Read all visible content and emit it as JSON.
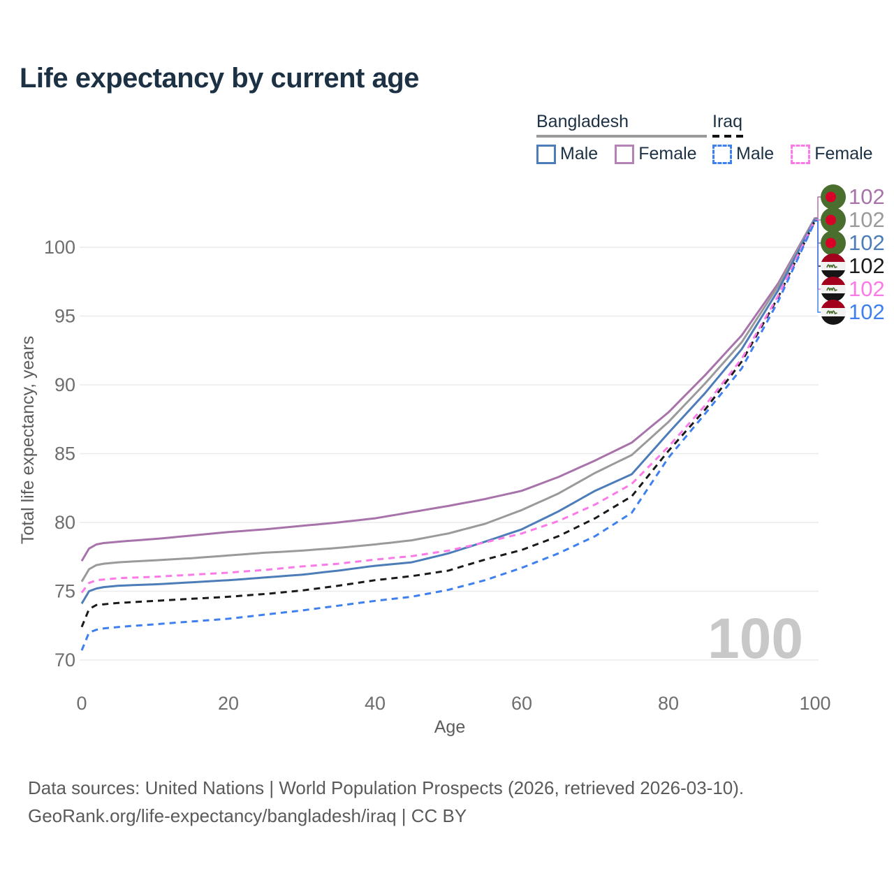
{
  "title": "Life expectancy by current age",
  "legend": {
    "groups": [
      {
        "label": "Bangladesh",
        "line_style": "solid",
        "line_color": "#9a9a9a",
        "items": [
          {
            "label": "Male",
            "color": "#4d7db8",
            "dash": "solid"
          },
          {
            "label": "Female",
            "color": "#b681b4",
            "dash": "solid"
          }
        ]
      },
      {
        "label": "Iraq",
        "line_style": "dashed",
        "line_color": "#111111",
        "items": [
          {
            "label": "Male",
            "color": "#3f80f0",
            "dash": "dashed"
          },
          {
            "label": "Female",
            "color": "#fc7ae8",
            "dash": "dashed"
          }
        ]
      }
    ]
  },
  "watermark": "100",
  "footer": {
    "line1": "Data sources: United Nations | World Population Prospects (2026, retrieved 2026-03-10).",
    "line2": "GeoRank.org/life-expectancy/bangladesh/iraq | CC BY"
  },
  "chart_data": {
    "type": "line",
    "title": "Life expectancy by current age",
    "xlabel": "Age",
    "ylabel": "Total life expectancy, years",
    "x_ticks": [
      0,
      20,
      40,
      60,
      80,
      100
    ],
    "y_ticks": [
      70,
      75,
      80,
      85,
      90,
      95,
      100
    ],
    "xlim": [
      0,
      100
    ],
    "ylim": [
      70,
      103
    ],
    "grid": true,
    "legend_position": "top-right",
    "x": [
      0,
      1,
      2,
      3,
      5,
      10,
      15,
      20,
      25,
      30,
      35,
      40,
      45,
      50,
      55,
      60,
      65,
      70,
      75,
      80,
      85,
      90,
      95,
      100
    ],
    "series": [
      {
        "name": "Bangladesh Female",
        "country": "Bangladesh",
        "sex": "Female",
        "color": "#a873ab",
        "dash": "solid",
        "end_label": "102",
        "values": [
          77.2,
          78.1,
          78.4,
          78.5,
          78.6,
          78.8,
          79.05,
          79.3,
          79.5,
          79.75,
          80.0,
          80.3,
          80.75,
          81.2,
          81.7,
          82.3,
          83.3,
          84.5,
          85.8,
          88.0,
          90.7,
          93.6,
          97.4,
          102.15
        ]
      },
      {
        "name": "Bangladesh",
        "country": "Bangladesh",
        "sex": "All",
        "color": "#9a9a9a",
        "dash": "solid",
        "end_label": "102",
        "values": [
          75.7,
          76.6,
          76.9,
          77.0,
          77.1,
          77.25,
          77.4,
          77.6,
          77.8,
          77.95,
          78.15,
          78.4,
          78.7,
          79.2,
          79.9,
          80.9,
          82.1,
          83.6,
          84.9,
          87.3,
          90.1,
          93.1,
          97.2,
          102.1
        ]
      },
      {
        "name": "Bangladesh Male",
        "country": "Bangladesh",
        "sex": "Male",
        "color": "#4d7db8",
        "dash": "solid",
        "end_label": "102",
        "values": [
          74.1,
          75.0,
          75.2,
          75.3,
          75.4,
          75.5,
          75.65,
          75.8,
          76.0,
          76.2,
          76.5,
          76.85,
          77.1,
          77.75,
          78.6,
          79.5,
          80.8,
          82.3,
          83.5,
          86.5,
          89.4,
          92.6,
          96.9,
          102.05
        ]
      },
      {
        "name": "Iraq",
        "country": "Iraq",
        "sex": "All",
        "color": "#1a1a1a",
        "dash": "dashed",
        "end_label": "102",
        "values": [
          72.4,
          73.7,
          74.0,
          74.05,
          74.15,
          74.3,
          74.45,
          74.6,
          74.8,
          75.05,
          75.4,
          75.8,
          76.1,
          76.5,
          77.3,
          78.0,
          79.0,
          80.3,
          81.9,
          85.2,
          88.2,
          91.7,
          96.4,
          101.95
        ]
      },
      {
        "name": "Iraq Female",
        "country": "Iraq",
        "sex": "Female",
        "color": "#fc7ae8",
        "dash": "dashed",
        "end_label": "102",
        "values": [
          74.9,
          75.6,
          75.8,
          75.85,
          75.95,
          76.05,
          76.2,
          76.35,
          76.55,
          76.8,
          77.0,
          77.3,
          77.55,
          77.95,
          78.55,
          79.2,
          80.1,
          81.3,
          82.8,
          85.5,
          88.5,
          91.9,
          96.5,
          102.0
        ]
      },
      {
        "name": "Iraq Male",
        "country": "Iraq",
        "sex": "Male",
        "color": "#3f80f0",
        "dash": "dashed",
        "end_label": "102",
        "values": [
          70.7,
          72.0,
          72.2,
          72.3,
          72.4,
          72.6,
          72.8,
          73.0,
          73.3,
          73.6,
          73.95,
          74.3,
          74.6,
          75.1,
          75.8,
          76.7,
          77.75,
          79.0,
          80.7,
          84.7,
          87.9,
          91.2,
          96.1,
          101.9
        ]
      }
    ]
  }
}
